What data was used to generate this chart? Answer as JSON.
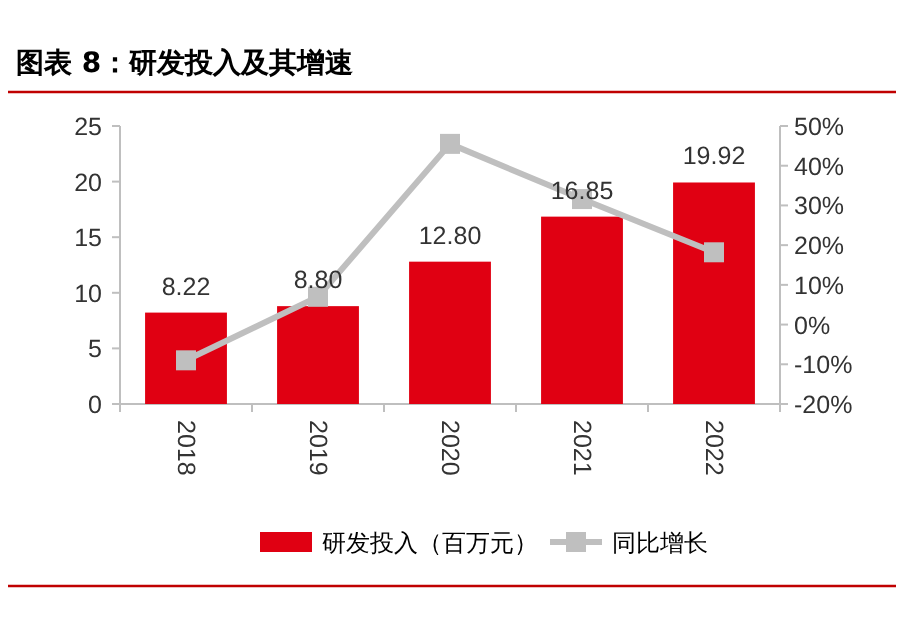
{
  "chart_data": {
    "type": "bar",
    "title": "图表 8：研发投入及其增速",
    "categories": [
      "2018",
      "2019",
      "2020",
      "2021",
      "2022"
    ],
    "series": [
      {
        "name": "研发投入（百万元）",
        "color": "#e00012",
        "values": [
          8.22,
          8.8,
          12.8,
          16.85,
          19.92
        ],
        "value_labels": [
          "8.22",
          "8.80",
          "12.80",
          "16.85",
          "19.92"
        ]
      },
      {
        "name": "同比增长",
        "type": "line",
        "axis": "y2",
        "color": "#bfbfbf",
        "marker": "square",
        "values": [
          -9,
          7,
          45.5,
          31.6,
          18.2
        ]
      }
    ],
    "ylim": [
      0,
      25
    ],
    "yticks": [
      0,
      5,
      10,
      15,
      20,
      25
    ],
    "y2lim": [
      -20,
      50
    ],
    "y2ticks": [
      {
        "value": -20,
        "label": "-20%"
      },
      {
        "value": -10,
        "label": "-10%"
      },
      {
        "value": 0,
        "label": "0%"
      },
      {
        "value": 10,
        "label": "10%"
      },
      {
        "value": 20,
        "label": "20%"
      },
      {
        "value": 30,
        "label": "30%"
      },
      {
        "value": 40,
        "label": "40%"
      },
      {
        "value": 50,
        "label": "50%"
      }
    ],
    "legend": "bottom",
    "grid": false
  }
}
